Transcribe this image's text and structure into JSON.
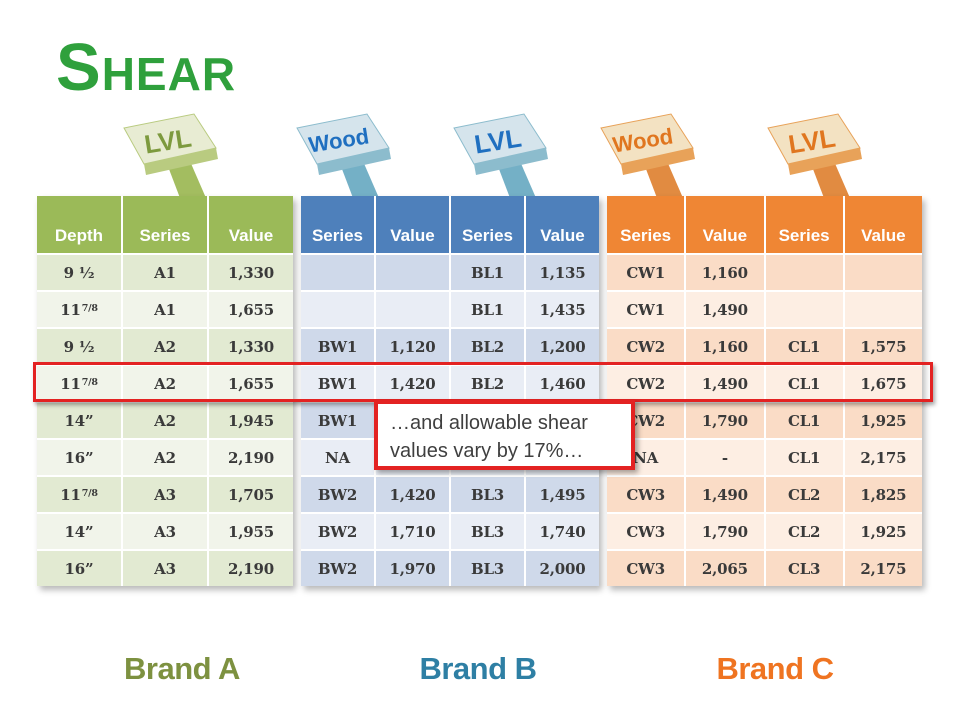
{
  "slide": {
    "title": "Shear"
  },
  "joists": [
    {
      "label": "LVL",
      "theme": "green"
    },
    {
      "label": "Wood",
      "theme": "blue"
    },
    {
      "label": "LVL",
      "theme": "blue"
    },
    {
      "label": "Wood",
      "theme": "orange"
    },
    {
      "label": "LVL",
      "theme": "orange"
    }
  ],
  "tables": {
    "brand_a": {
      "headers": [
        "Depth",
        "Series",
        "Value"
      ],
      "rows": [
        [
          "9 ½",
          "",
          "A1",
          "1,330"
        ],
        [
          "11",
          "7/8",
          "A1",
          "1,655"
        ],
        [
          "9 ½",
          "",
          "A2",
          "1,330"
        ],
        [
          "11",
          "7/8",
          "A2",
          "1,655"
        ],
        [
          "14”",
          "",
          "A2",
          "1,945"
        ],
        [
          "16”",
          "",
          "A2",
          "2,190"
        ],
        [
          "11",
          "7/8",
          "A3",
          "1,705"
        ],
        [
          "14”",
          "",
          "A3",
          "1,955"
        ],
        [
          "16”",
          "",
          "A3",
          "2,190"
        ]
      ]
    },
    "brand_b": {
      "headers": [
        "Series",
        "Value",
        "Series",
        "Value"
      ],
      "rows": [
        [
          "",
          "",
          "BL1",
          "1,135"
        ],
        [
          "",
          "",
          "BL1",
          "1,435"
        ],
        [
          "BW1",
          "1,120",
          "BL2",
          "1,200"
        ],
        [
          "BW1",
          "1,420",
          "BL2",
          "1,460"
        ],
        [
          "BW1",
          "",
          "",
          ""
        ],
        [
          "NA",
          "",
          "",
          ""
        ],
        [
          "BW2",
          "1,420",
          "BL3",
          "1,495"
        ],
        [
          "BW2",
          "1,710",
          "BL3",
          "1,740"
        ],
        [
          "BW2",
          "1,970",
          "BL3",
          "2,000"
        ]
      ]
    },
    "brand_c": {
      "headers": [
        "Series",
        "Value",
        "Series",
        "Value"
      ],
      "rows": [
        [
          "CW1",
          "1,160",
          "",
          ""
        ],
        [
          "CW1",
          "1,490",
          "",
          ""
        ],
        [
          "CW2",
          "1,160",
          "CL1",
          "1,575"
        ],
        [
          "CW2",
          "1,490",
          "CL1",
          "1,675"
        ],
        [
          "CW2",
          "1,790",
          "CL1",
          "1,925"
        ],
        [
          "NA",
          "-",
          "CL1",
          "2,175"
        ],
        [
          "CW3",
          "1,490",
          "CL2",
          "1,825"
        ],
        [
          "CW3",
          "1,790",
          "CL2",
          "1,925"
        ],
        [
          "CW3",
          "2,065",
          "CL3",
          "2,175"
        ]
      ]
    }
  },
  "callout": {
    "line1": "…and allowable shear",
    "line2": "values vary by 17%…"
  },
  "brands": [
    "Brand A",
    "Brand B",
    "Brand C"
  ],
  "colors": {
    "title_green": "#2fa03c",
    "header_green": "#9bba58",
    "header_blue": "#4e80bb",
    "header_orange": "#ef8634",
    "highlight_red": "#e32222",
    "brand_a_text": "#7d9140",
    "brand_b_text": "#2e7fa4",
    "brand_c_text": "#ef7421"
  }
}
